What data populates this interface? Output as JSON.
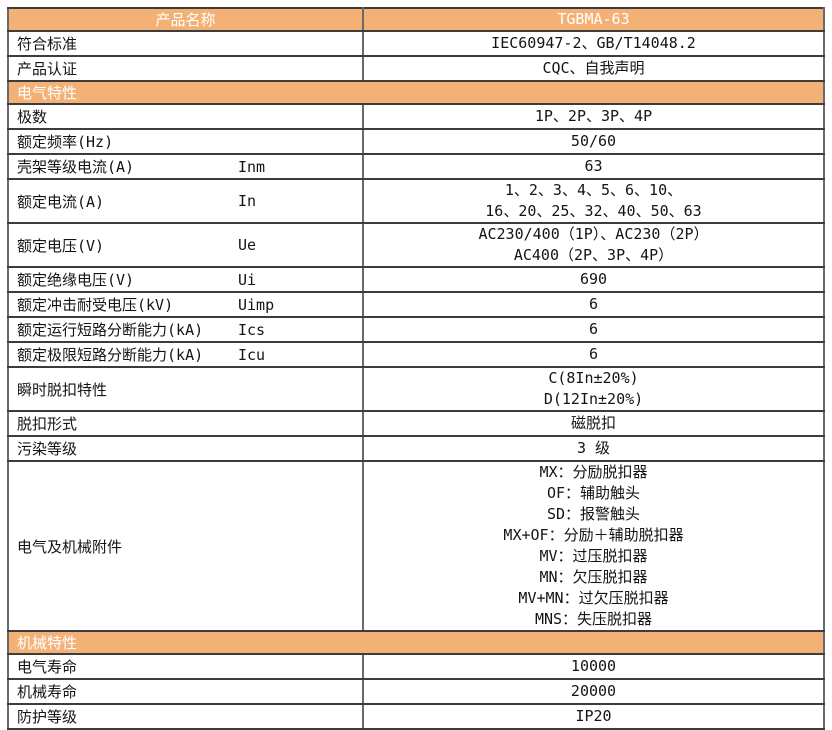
{
  "table": {
    "colors": {
      "header_bg": "#f4b176",
      "header_text": "#ffffff",
      "border_outer": "#1f1f1f",
      "border_inner": "#3c3c3c"
    },
    "rows": [
      {
        "type": "header",
        "label": "产品名称",
        "value_lines": [
          "TGBMA-63"
        ]
      },
      {
        "type": "data",
        "label": "符合标准",
        "value_lines": [
          "IEC60947-2、GB/T14048.2"
        ]
      },
      {
        "type": "data",
        "label": "产品认证",
        "value_lines": [
          "CQC、自我声明"
        ]
      },
      {
        "type": "section",
        "label": "电气特性"
      },
      {
        "type": "data",
        "label": "极数",
        "value_lines": [
          "1P、2P、3P、4P"
        ]
      },
      {
        "type": "data",
        "label": "额定频率(Hz)",
        "value_lines": [
          "50/60"
        ]
      },
      {
        "type": "data",
        "label": "壳架等级电流(A)",
        "symbol": "Inm",
        "value_lines": [
          "63"
        ]
      },
      {
        "type": "data",
        "label": "额定电流(A)",
        "symbol": "In",
        "value_lines": [
          "1、2、3、4、5、6、10、",
          "16、20、25、32、40、50、63"
        ]
      },
      {
        "type": "data",
        "label": "额定电压(V)",
        "symbol": "Ue",
        "value_lines": [
          "AC230/400（1P）、AC230（2P）",
          "AC400（2P、3P、4P）"
        ]
      },
      {
        "type": "data",
        "label": "额定绝缘电压(V)",
        "symbol": "Ui",
        "value_lines": [
          "690"
        ]
      },
      {
        "type": "data",
        "label": "额定冲击耐受电压(kV)",
        "symbol": "Uimp",
        "value_lines": [
          "6"
        ]
      },
      {
        "type": "data",
        "label": "额定运行短路分断能力(kA)",
        "symbol": "Ics",
        "value_lines": [
          "6"
        ]
      },
      {
        "type": "data",
        "label": "额定极限短路分断能力(kA)",
        "symbol": "Icu",
        "value_lines": [
          "6"
        ]
      },
      {
        "type": "data",
        "label": "瞬时脱扣特性",
        "value_lines": [
          "C(8In±20%)",
          "D(12In±20%)"
        ]
      },
      {
        "type": "data",
        "label": "脱扣形式",
        "value_lines": [
          "磁脱扣"
        ]
      },
      {
        "type": "data",
        "label": "污染等级",
        "value_lines": [
          "3 级"
        ]
      },
      {
        "type": "data",
        "label": "电气及机械附件",
        "value_lines": [
          "MX：分励脱扣器",
          "OF：辅助触头",
          "SD：报警触头",
          "MX+OF：分励＋辅助脱扣器",
          "MV：过压脱扣器",
          "MN：欠压脱扣器",
          "MV+MN：过欠压脱扣器",
          "MNS：失压脱扣器"
        ]
      },
      {
        "type": "section",
        "label": "机械特性"
      },
      {
        "type": "data",
        "label": "电气寿命",
        "value_lines": [
          "10000"
        ]
      },
      {
        "type": "data",
        "label": "机械寿命",
        "value_lines": [
          "20000"
        ]
      },
      {
        "type": "data",
        "label": "防护等级",
        "value_lines": [
          "IP20"
        ]
      }
    ]
  }
}
